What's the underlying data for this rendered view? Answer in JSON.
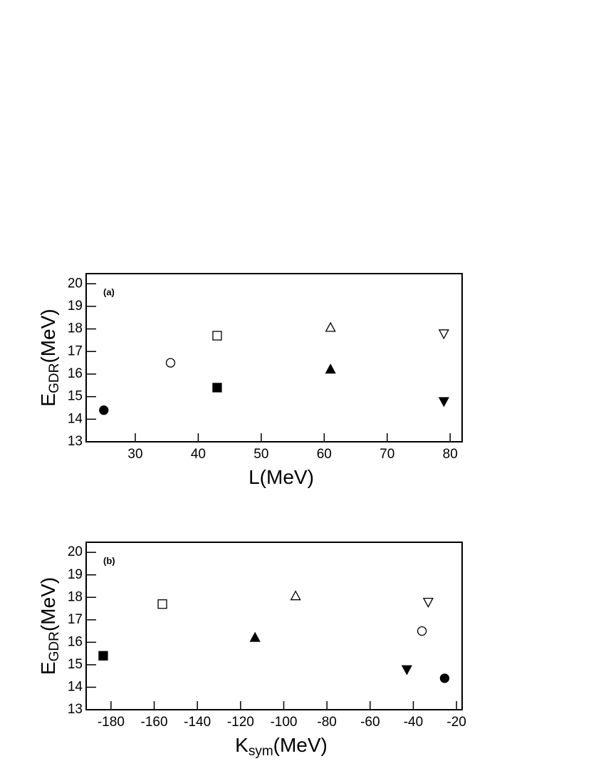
{
  "chart_data": [
    {
      "type": "scatter",
      "annotation": "(a)",
      "xlabel": [
        "L(MeV)"
      ],
      "ylabel": [
        "E",
        "GDR",
        "(MeV)"
      ],
      "xlim": [
        22.2,
        81.9
      ],
      "ylim": [
        13,
        20.45
      ],
      "xticks": [
        30,
        40,
        50,
        60,
        70,
        80
      ],
      "yticks": [
        13,
        14,
        15,
        16,
        17,
        18,
        19,
        20
      ],
      "series": [
        {
          "marker": "circle",
          "filled": true,
          "x": [
            25
          ],
          "values": [
            14.4
          ]
        },
        {
          "marker": "circle",
          "filled": false,
          "x": [
            35.6
          ],
          "values": [
            16.5
          ]
        },
        {
          "marker": "square",
          "filled": false,
          "x": [
            43
          ],
          "values": [
            17.7
          ]
        },
        {
          "marker": "square",
          "filled": true,
          "x": [
            43
          ],
          "values": [
            15.4
          ]
        },
        {
          "marker": "triangle-up",
          "filled": false,
          "x": [
            61
          ],
          "values": [
            18.05
          ]
        },
        {
          "marker": "triangle-up",
          "filled": true,
          "x": [
            61
          ],
          "values": [
            16.2
          ]
        },
        {
          "marker": "triangle-down",
          "filled": false,
          "x": [
            79
          ],
          "values": [
            17.8
          ]
        },
        {
          "marker": "triangle-down",
          "filled": true,
          "x": [
            79
          ],
          "values": [
            14.8
          ]
        }
      ]
    },
    {
      "type": "scatter",
      "annotation": "(b)",
      "xlabel": [
        "K",
        "sym",
        "(MeV)"
      ],
      "ylabel": [
        "E",
        "GDR",
        "(MeV)"
      ],
      "xlim": [
        -191.5,
        -17.4
      ],
      "ylim": [
        13,
        20.45
      ],
      "xticks": [
        -180,
        -160,
        -140,
        -120,
        -100,
        -80,
        -60,
        -40,
        -20
      ],
      "yticks": [
        13,
        14,
        15,
        16,
        17,
        18,
        19,
        20
      ],
      "series": [
        {
          "marker": "square",
          "filled": true,
          "x": [
            -183.6
          ],
          "values": [
            15.4
          ]
        },
        {
          "marker": "square",
          "filled": false,
          "x": [
            -156.2
          ],
          "values": [
            17.7
          ]
        },
        {
          "marker": "triangle-up",
          "filled": true,
          "x": [
            -113.3
          ],
          "values": [
            16.2
          ]
        },
        {
          "marker": "triangle-up",
          "filled": false,
          "x": [
            -94.5
          ],
          "values": [
            18.05
          ]
        },
        {
          "marker": "triangle-down",
          "filled": true,
          "x": [
            -43
          ],
          "values": [
            14.8
          ]
        },
        {
          "marker": "triangle-down",
          "filled": false,
          "x": [
            -33.1
          ],
          "values": [
            17.8
          ]
        },
        {
          "marker": "circle",
          "filled": false,
          "x": [
            -36
          ],
          "values": [
            16.5
          ]
        },
        {
          "marker": "circle",
          "filled": true,
          "x": [
            -25.5
          ],
          "values": [
            14.4
          ]
        }
      ]
    }
  ]
}
